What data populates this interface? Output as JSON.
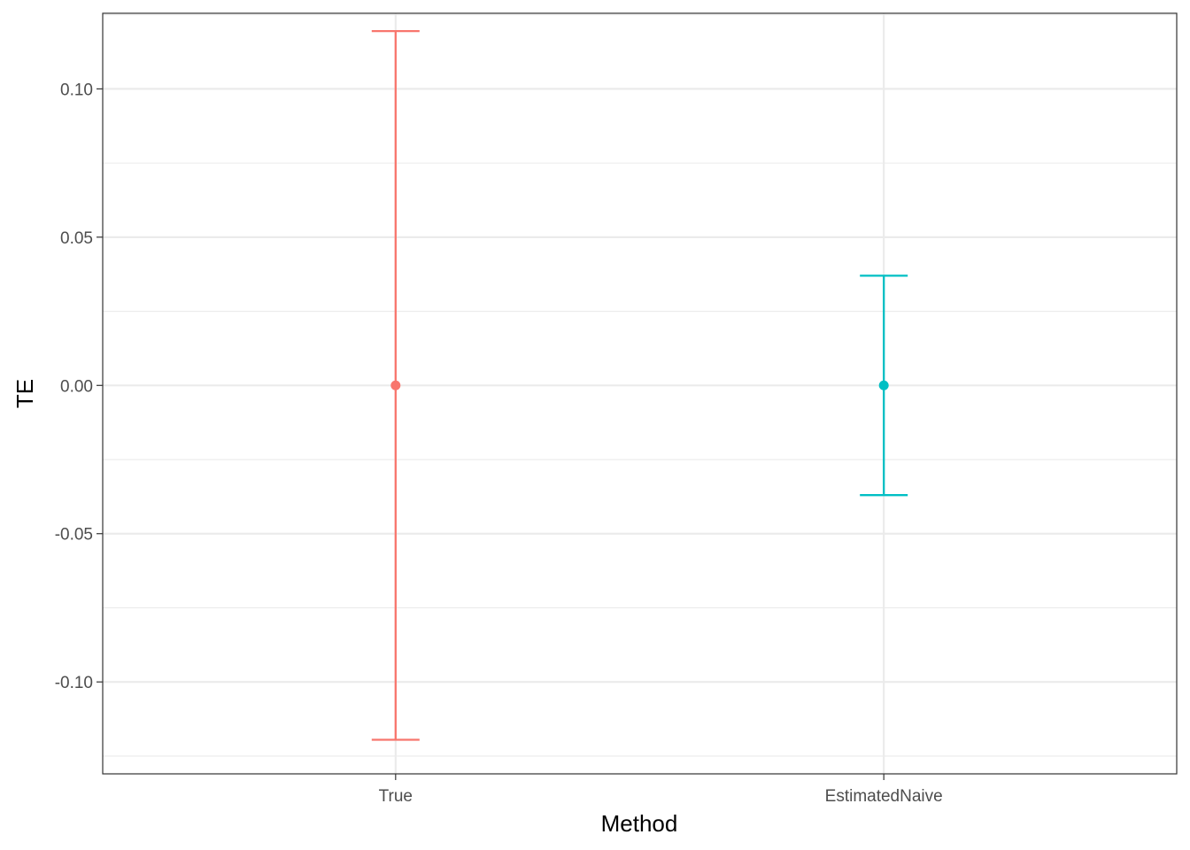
{
  "chart_data": {
    "type": "errorbar",
    "xlabel": "Method",
    "ylabel": "TE",
    "categories": [
      "True",
      "EstimatedNaive"
    ],
    "points": [
      {
        "category": "True",
        "y": 0.0,
        "ymin": -0.1195,
        "ymax": 0.1195,
        "color": "#F8766D"
      },
      {
        "category": "EstimatedNaive",
        "y": 0.0,
        "ymin": -0.037,
        "ymax": 0.037,
        "color": "#00BFC4"
      }
    ],
    "ylim": [
      -0.131,
      0.1255
    ],
    "yticks": [
      -0.1,
      -0.05,
      0.0,
      0.05,
      0.1
    ],
    "ytick_labels": [
      "-0.10",
      "-0.05",
      "0.00",
      "0.05",
      "0.10"
    ],
    "grid": true,
    "legend": "none",
    "theme": "bw"
  }
}
